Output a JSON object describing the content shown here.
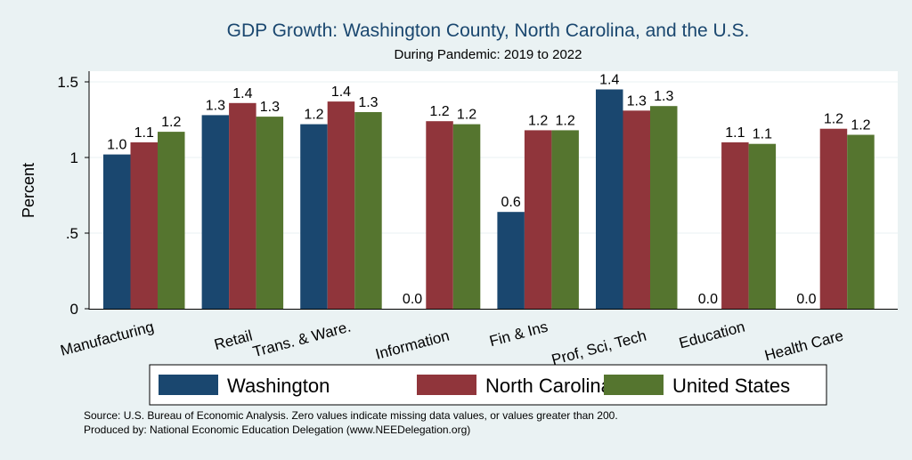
{
  "chart_data": {
    "type": "bar",
    "title": "GDP Growth: Washington County, North Carolina, and the U.S.",
    "subtitle": "During Pandemic: 2019 to 2022",
    "ylabel": "Percent",
    "xlabel": "",
    "ylim": [
      0,
      1.6
    ],
    "yticks": [
      0,
      0.5,
      1,
      1.5
    ],
    "ytick_labels": [
      "0",
      ".5",
      "1",
      "1.5"
    ],
    "grid": true,
    "legend_position": "bottom",
    "categories": [
      "Manufacturing",
      "Retail",
      "Trans. & Ware.",
      "Information",
      "Fin & Ins",
      "Prof, Sci, Tech",
      "Education",
      "Health Care"
    ],
    "series": [
      {
        "name": "Washington",
        "color": "#1a476f",
        "values": [
          1.02,
          1.28,
          1.22,
          0.0,
          0.64,
          1.45,
          0.0,
          0.0
        ],
        "labels": [
          "1.0",
          "1.3",
          "1.2",
          "0.0",
          "0.6",
          "1.4",
          "0.0",
          "0.0"
        ]
      },
      {
        "name": "North Carolina",
        "color": "#90353b",
        "values": [
          1.1,
          1.36,
          1.37,
          1.24,
          1.18,
          1.31,
          1.1,
          1.19
        ],
        "labels": [
          "1.1",
          "1.4",
          "1.4",
          "1.2",
          "1.2",
          "1.3",
          "1.1",
          "1.2"
        ]
      },
      {
        "name": "United States",
        "color": "#55752f",
        "values": [
          1.17,
          1.27,
          1.3,
          1.22,
          1.18,
          1.34,
          1.09,
          1.15
        ],
        "labels": [
          "1.2",
          "1.3",
          "1.3",
          "1.2",
          "1.2",
          "1.3",
          "1.1",
          "1.2"
        ]
      }
    ],
    "notes": [
      "Source: U.S. Bureau of Economic Analysis. Zero values indicate missing data values, or values greater than 200.",
      "Produced by: National Economic Education Delegation (www.NEEDelegation.org)"
    ]
  }
}
